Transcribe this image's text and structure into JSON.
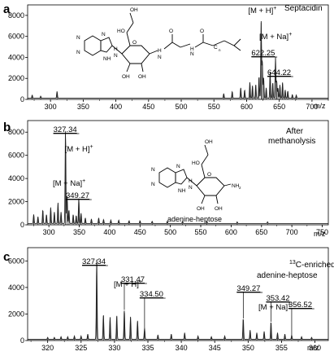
{
  "panels": [
    {
      "letter": "a",
      "annotation_lines": [
        "Septacidin"
      ],
      "mz_unit": "m/z",
      "molecule_caption": "",
      "chart_data": {
        "type": "line",
        "xlim": [
          265,
          725
        ],
        "ylim": [
          0,
          9000
        ],
        "x_ticks": [
          300,
          350,
          400,
          450,
          500,
          550,
          600,
          650,
          700
        ],
        "x_tick_labels": [
          "300",
          "350",
          "400",
          "450",
          "500",
          "550",
          "600",
          "650",
          "700"
        ],
        "y_ticks": [
          0,
          2000,
          4000,
          6000,
          8000
        ],
        "y_tick_labels": [
          "0",
          "2000",
          "4000",
          "6000",
          "8000"
        ],
        "peaks": [
          {
            "x": 272,
            "y": 300
          },
          {
            "x": 285,
            "y": 200
          },
          {
            "x": 310,
            "y": 650
          },
          {
            "x": 565,
            "y": 450
          },
          {
            "x": 578,
            "y": 650
          },
          {
            "x": 591,
            "y": 1000
          },
          {
            "x": 597,
            "y": 800
          },
          {
            "x": 605,
            "y": 1550
          },
          {
            "x": 609,
            "y": 1200
          },
          {
            "x": 614,
            "y": 1300
          },
          {
            "x": 619,
            "y": 2100
          },
          {
            "x": 622.25,
            "y": 7300
          },
          {
            "x": 624,
            "y": 3600
          },
          {
            "x": 626,
            "y": 2000
          },
          {
            "x": 630,
            "y": 1000
          },
          {
            "x": 636,
            "y": 2500
          },
          {
            "x": 640,
            "y": 1500
          },
          {
            "x": 644.22,
            "y": 3900
          },
          {
            "x": 646,
            "y": 1700
          },
          {
            "x": 648,
            "y": 1000
          },
          {
            "x": 651,
            "y": 1300
          },
          {
            "x": 655,
            "y": 1500
          },
          {
            "x": 659,
            "y": 800
          },
          {
            "x": 663,
            "y": 700
          },
          {
            "x": 670,
            "y": 350
          },
          {
            "x": 676,
            "y": 300
          }
        ],
        "annotations": [
          {
            "x": 622.25,
            "y": 7300,
            "value_label": "622.25",
            "ion_label": "[M + H]",
            "superscript": "+"
          },
          {
            "x": 644.22,
            "y": 3900,
            "value_label": "644.22",
            "ion_label": "[M + Na]",
            "superscript": "+"
          }
        ]
      }
    },
    {
      "letter": "b",
      "annotation_lines": [
        "After",
        "methanolysis"
      ],
      "mz_unit": "m/z",
      "molecule_caption": "adenine-heptose",
      "chart_data": {
        "type": "line",
        "xlim": [
          265,
          760
        ],
        "ylim": [
          0,
          9000
        ],
        "x_ticks": [
          300,
          350,
          400,
          450,
          500,
          550,
          600,
          650,
          700,
          750
        ],
        "x_tick_labels": [
          "300",
          "350",
          "400",
          "450",
          "500",
          "550",
          "600",
          "650",
          "700",
          "750"
        ],
        "y_ticks": [
          0,
          2000,
          4000,
          6000,
          8000
        ],
        "y_tick_labels": [
          "0",
          "2000",
          "4000",
          "6000",
          "8000"
        ],
        "peaks": [
          {
            "x": 275,
            "y": 800
          },
          {
            "x": 282,
            "y": 600
          },
          {
            "x": 290,
            "y": 1200
          },
          {
            "x": 296,
            "y": 800
          },
          {
            "x": 303,
            "y": 1400
          },
          {
            "x": 309,
            "y": 1000
          },
          {
            "x": 315,
            "y": 1800
          },
          {
            "x": 320,
            "y": 1000
          },
          {
            "x": 327.34,
            "y": 8100
          },
          {
            "x": 330,
            "y": 2400
          },
          {
            "x": 333,
            "y": 1200
          },
          {
            "x": 340,
            "y": 800
          },
          {
            "x": 345,
            "y": 700
          },
          {
            "x": 349.27,
            "y": 2200
          },
          {
            "x": 353,
            "y": 900
          },
          {
            "x": 360,
            "y": 500
          },
          {
            "x": 370,
            "y": 400
          },
          {
            "x": 382,
            "y": 500
          },
          {
            "x": 390,
            "y": 350
          },
          {
            "x": 402,
            "y": 300
          },
          {
            "x": 415,
            "y": 300
          },
          {
            "x": 432,
            "y": 250
          },
          {
            "x": 450,
            "y": 250
          },
          {
            "x": 470,
            "y": 200
          },
          {
            "x": 495,
            "y": 200
          },
          {
            "x": 520,
            "y": 200
          },
          {
            "x": 560,
            "y": 200
          },
          {
            "x": 610,
            "y": 150
          },
          {
            "x": 660,
            "y": 150
          }
        ],
        "annotations": [
          {
            "x": 327.34,
            "y": 8100,
            "value_label": "327.34",
            "ion_label": "[M + H]",
            "superscript": "+"
          },
          {
            "x": 349.27,
            "y": 2200,
            "value_label": "349.27",
            "ion_label": "[M + Na]",
            "superscript": "+"
          }
        ]
      }
    },
    {
      "letter": "c",
      "annotation_lines": [
        "13C-enriched",
        "adenine-heptose"
      ],
      "mz_unit": "m/z",
      "molecule_caption": "",
      "chart_data": {
        "type": "line",
        "xlim": [
          317,
          362
        ],
        "ylim": [
          0,
          7000
        ],
        "x_ticks": [
          320,
          325,
          330,
          335,
          340,
          345,
          350,
          355,
          360
        ],
        "x_tick_labels": [
          "320",
          "325",
          "330",
          "335",
          "340",
          "345",
          "350",
          "355",
          "360"
        ],
        "y_ticks": [
          0,
          2000,
          4000,
          6000
        ],
        "y_tick_labels": [
          "0",
          "2000",
          "4000",
          "6000"
        ],
        "peaks": [
          {
            "x": 320,
            "y": 150
          },
          {
            "x": 321,
            "y": 150
          },
          {
            "x": 322,
            "y": 200
          },
          {
            "x": 323,
            "y": 200
          },
          {
            "x": 324,
            "y": 250
          },
          {
            "x": 325,
            "y": 250
          },
          {
            "x": 326,
            "y": 400
          },
          {
            "x": 327.34,
            "y": 6100
          },
          {
            "x": 328.34,
            "y": 1850
          },
          {
            "x": 329.34,
            "y": 1700
          },
          {
            "x": 330.34,
            "y": 1800
          },
          {
            "x": 331.47,
            "y": 2250
          },
          {
            "x": 332.4,
            "y": 1700
          },
          {
            "x": 333.45,
            "y": 1400
          },
          {
            "x": 334.5,
            "y": 850
          },
          {
            "x": 336.5,
            "y": 350
          },
          {
            "x": 338.5,
            "y": 400
          },
          {
            "x": 340.5,
            "y": 500
          },
          {
            "x": 342.5,
            "y": 250
          },
          {
            "x": 344.5,
            "y": 200
          },
          {
            "x": 346.5,
            "y": 250
          },
          {
            "x": 349.27,
            "y": 1600
          },
          {
            "x": 350.3,
            "y": 700
          },
          {
            "x": 351.3,
            "y": 500
          },
          {
            "x": 352.4,
            "y": 600
          },
          {
            "x": 353.42,
            "y": 1350
          },
          {
            "x": 354.4,
            "y": 500
          },
          {
            "x": 355.5,
            "y": 400
          },
          {
            "x": 356.52,
            "y": 300
          },
          {
            "x": 358,
            "y": 200
          },
          {
            "x": 359.5,
            "y": 150
          }
        ],
        "annotations": [
          {
            "x": 327.34,
            "y": 6100,
            "value_label": "327.34",
            "ion_label": "",
            "superscript": ""
          },
          {
            "x": 331.47,
            "y": 2250,
            "value_label": "331.47",
            "ion_label": "",
            "superscript": ""
          },
          {
            "x": 334.5,
            "y": 850,
            "value_label": "334.50",
            "ion_label": "",
            "superscript": ""
          },
          {
            "x": 349.27,
            "y": 1600,
            "value_label": "349.27",
            "ion_label": "",
            "superscript": ""
          },
          {
            "x": 353.42,
            "y": 1350,
            "value_label": "353.42",
            "ion_label": "",
            "superscript": ""
          },
          {
            "x": 356.52,
            "y": 300,
            "value_label": "356.52",
            "ion_label": "",
            "superscript": ""
          }
        ],
        "ion_labels": [
          {
            "text": "[M + H]",
            "superscript": "+"
          },
          {
            "text": "[M + Na]",
            "superscript": "+"
          }
        ]
      }
    }
  ]
}
